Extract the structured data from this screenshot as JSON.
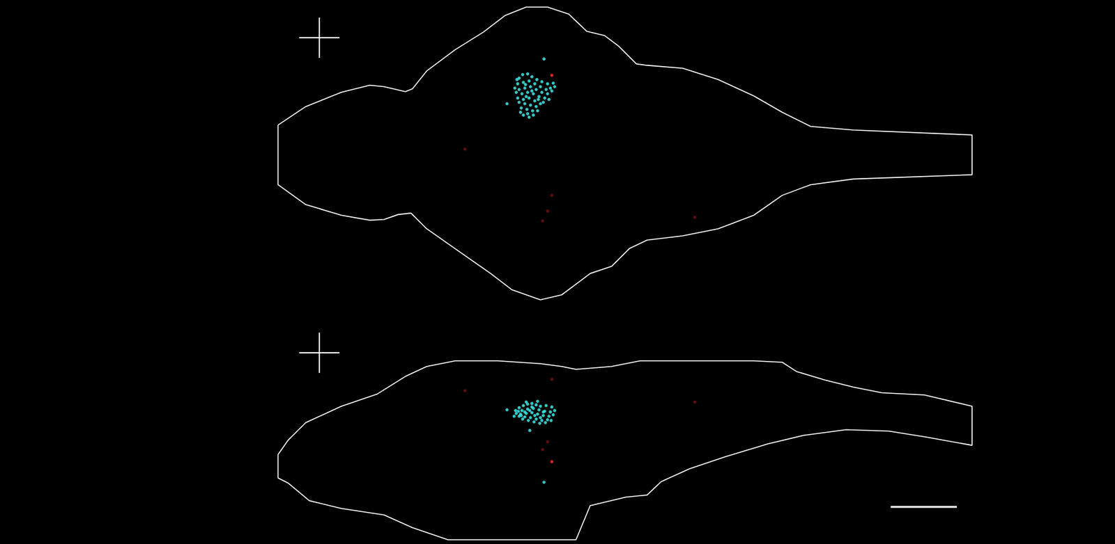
{
  "chart_data": [
    {
      "type": "scatter",
      "tick_labels": false,
      "xlim": [
        0,
        1568
      ],
      "ylim": [
        0,
        440
      ],
      "series": [
        {
          "color": "#3fe6e6",
          "values": [
            [
              730,
              110
            ],
            [
              735,
              105
            ],
            [
              742,
              104
            ],
            [
              748,
              108
            ],
            [
              755,
              112
            ],
            [
              762,
              115
            ],
            [
              770,
              118
            ],
            [
              778,
              117
            ],
            [
              774,
              124
            ],
            [
              768,
              126
            ],
            [
              760,
              122
            ],
            [
              752,
              118
            ],
            [
              744,
              114
            ],
            [
              736,
              116
            ],
            [
              728,
              118
            ],
            [
              724,
              124
            ],
            [
              730,
              126
            ],
            [
              738,
              124
            ],
            [
              746,
              122
            ],
            [
              754,
              126
            ],
            [
              762,
              130
            ],
            [
              770,
              132
            ],
            [
              776,
              128
            ],
            [
              766,
              138
            ],
            [
              758,
              136
            ],
            [
              750,
              132
            ],
            [
              742,
              130
            ],
            [
              734,
              132
            ],
            [
              726,
              130
            ],
            [
              728,
              138
            ],
            [
              736,
              140
            ],
            [
              744,
              138
            ],
            [
              752,
              142
            ],
            [
              760,
              146
            ],
            [
              754,
              150
            ],
            [
              746,
              148
            ],
            [
              738,
              146
            ],
            [
              730,
              144
            ],
            [
              733,
              152
            ],
            [
              741,
              154
            ],
            [
              749,
              156
            ],
            [
              742,
              160
            ],
            [
              736,
              162
            ],
            [
              744,
              165
            ],
            [
              750,
              162
            ],
            [
              756,
              156
            ],
            [
              764,
              144
            ],
            [
              772,
              140
            ],
            [
              780,
              122
            ],
            [
              727,
              112
            ],
            [
              740,
              136
            ],
            [
              748,
              128
            ],
            [
              757,
              140
            ],
            [
              739,
              119
            ],
            [
              732,
              158
            ],
            [
              765,
              83
            ],
            [
              713,
              146
            ]
          ]
        },
        {
          "color": "#ff2a2a",
          "values": [
            [
              776,
              106
            ]
          ]
        },
        {
          "color": "#6e1010",
          "values": [
            [
              654,
              210
            ],
            [
              776,
              275
            ],
            [
              770,
              297
            ],
            [
              763,
              311
            ],
            [
              977,
              306
            ]
          ]
        }
      ]
    },
    {
      "type": "scatter",
      "tick_labels": false,
      "xlim": [
        0,
        1568
      ],
      "ylim": [
        0,
        326
      ],
      "series": [
        {
          "color": "#3fe6e6",
          "values": [
            [
              725,
              138
            ],
            [
              730,
              134
            ],
            [
              736,
              131
            ],
            [
              742,
              129
            ],
            [
              748,
              128
            ],
            [
              754,
              130
            ],
            [
              760,
              132
            ],
            [
              768,
              131
            ],
            [
              776,
              133
            ],
            [
              780,
              138
            ],
            [
              774,
              140
            ],
            [
              766,
              139
            ],
            [
              758,
              137
            ],
            [
              750,
              135
            ],
            [
              742,
              136
            ],
            [
              734,
              138
            ],
            [
              726,
              142
            ],
            [
              732,
              143
            ],
            [
              740,
              142
            ],
            [
              748,
              141
            ],
            [
              756,
              143
            ],
            [
              764,
              145
            ],
            [
              772,
              146
            ],
            [
              778,
              144
            ],
            [
              770,
              151
            ],
            [
              762,
              152
            ],
            [
              754,
              150
            ],
            [
              746,
              148
            ],
            [
              738,
              147
            ],
            [
              730,
              146
            ],
            [
              735,
              150
            ],
            [
              743,
              152
            ],
            [
              751,
              154
            ],
            [
              759,
              156
            ],
            [
              767,
              155
            ],
            [
              775,
              152
            ],
            [
              723,
              146
            ],
            [
              745,
              138
            ],
            [
              752,
              145
            ],
            [
              738,
              140
            ],
            [
              729,
              139
            ],
            [
              760,
              148
            ],
            [
              748,
              133
            ],
            [
              740,
              126
            ],
            [
              756,
              125
            ],
            [
              733,
              145
            ],
            [
              764,
              140
            ],
            [
              745,
              166
            ],
            [
              765,
              239
            ],
            [
              713,
              137
            ]
          ]
        },
        {
          "color": "#ff2a2a",
          "values": [
            [
              776,
              210
            ]
          ]
        },
        {
          "color": "#6e1010",
          "values": [
            [
              776,
              94
            ],
            [
              654,
              110
            ],
            [
              977,
              126
            ],
            [
              770,
              182
            ],
            [
              763,
              193
            ]
          ]
        }
      ]
    }
  ]
}
